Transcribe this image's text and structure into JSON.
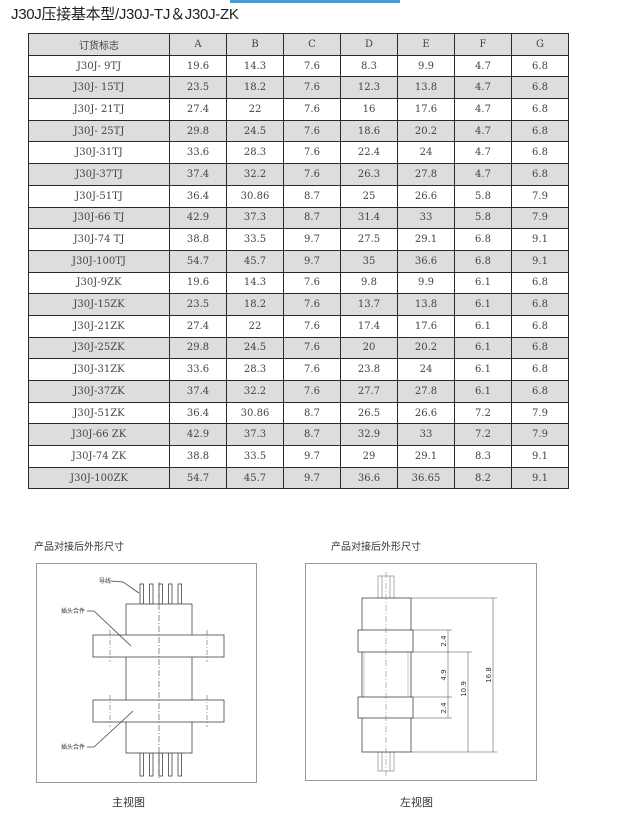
{
  "title": "J30J压接基本型/J30J-TJ＆J30J-ZK",
  "table": {
    "headers": [
      "订货标志",
      "A",
      "B",
      "C",
      "D",
      "E",
      "F",
      "G"
    ],
    "rows": [
      [
        "J30J- 9TJ",
        "19.6",
        "14.3",
        "7.6",
        "8.3",
        "9.9",
        "4.7",
        "6.8"
      ],
      [
        "J30J- 15TJ",
        "23.5",
        "18.2",
        "7.6",
        "12.3",
        "13.8",
        "4.7",
        "6.8"
      ],
      [
        "J30J- 21TJ",
        "27.4",
        "22",
        "7.6",
        "16",
        "17.6",
        "4.7",
        "6.8"
      ],
      [
        "J30J- 25TJ",
        "29.8",
        "24.5",
        "7.6",
        "18.6",
        "20.2",
        "4.7",
        "6.8"
      ],
      [
        "J30J-31TJ",
        "33.6",
        "28.3",
        "7.6",
        "22.4",
        "24",
        "4.7",
        "6.8"
      ],
      [
        "J30J-37TJ",
        "37.4",
        "32.2",
        "7.6",
        "26.3",
        "27.8",
        "4.7",
        "6.8"
      ],
      [
        "J30J-51TJ",
        "36.4",
        "30.86",
        "8.7",
        "25",
        "26.6",
        "5.8",
        "7.9"
      ],
      [
        "J30J-66 TJ",
        "42.9",
        "37.3",
        "8.7",
        "31.4",
        "33",
        "5.8",
        "7.9"
      ],
      [
        "J30J-74 TJ",
        "38.8",
        "33.5",
        "9.7",
        "27.5",
        "29.1",
        "6.8",
        "9.1"
      ],
      [
        "J30J-100TJ",
        "54.7",
        "45.7",
        "9.7",
        "35",
        "36.6",
        "6.8",
        "9.1"
      ],
      [
        "J30J-9ZK",
        "19.6",
        "14.3",
        "7.6",
        "9.8",
        "9.9",
        "6.1",
        "6.8"
      ],
      [
        "J30J-15ZK",
        "23.5",
        "18.2",
        "7.6",
        "13.7",
        "13.8",
        "6.1",
        "6.8"
      ],
      [
        "J30J-21ZK",
        "27.4",
        "22",
        "7.6",
        "17.4",
        "17.6",
        "6.1",
        "6.8"
      ],
      [
        "J30J-25ZK",
        "29.8",
        "24.5",
        "7.6",
        "20",
        "20.2",
        "6.1",
        "6.8"
      ],
      [
        "J30J-31ZK",
        "33.6",
        "28.3",
        "7.6",
        "23.8",
        "24",
        "6.1",
        "6.8"
      ],
      [
        "J30J-37ZK",
        "37.4",
        "32.2",
        "7.6",
        "27.7",
        "27.8",
        "6.1",
        "6.8"
      ],
      [
        "J30J-51ZK",
        "36.4",
        "30.86",
        "8.7",
        "26.5",
        "26.6",
        "7.2",
        "7.9"
      ],
      [
        "J30J-66 ZK",
        "42.9",
        "37.3",
        "8.7",
        "32.9",
        "33",
        "7.2",
        "7.9"
      ],
      [
        "J30J-74 ZK",
        "38.8",
        "33.5",
        "9.7",
        "29",
        "29.1",
        "8.3",
        "9.1"
      ],
      [
        "J30J-100ZK",
        "54.7",
        "45.7",
        "9.7",
        "36.6",
        "36.65",
        "8.2",
        "9.1"
      ]
    ]
  },
  "front_view": {
    "heading": "产品对接后外形尺寸",
    "caption": "主视图",
    "labels": {
      "wire": "导线",
      "plug_top": "插头合件",
      "plug_bottom": "插头合件"
    }
  },
  "side_view": {
    "heading": "产品对接后外形尺寸",
    "caption": "左视图",
    "dimensions": {
      "flange_top": "2.4",
      "gap": "4.9",
      "flange_bottom": "2.4",
      "inner": "10.9",
      "overall": "16.8"
    }
  }
}
